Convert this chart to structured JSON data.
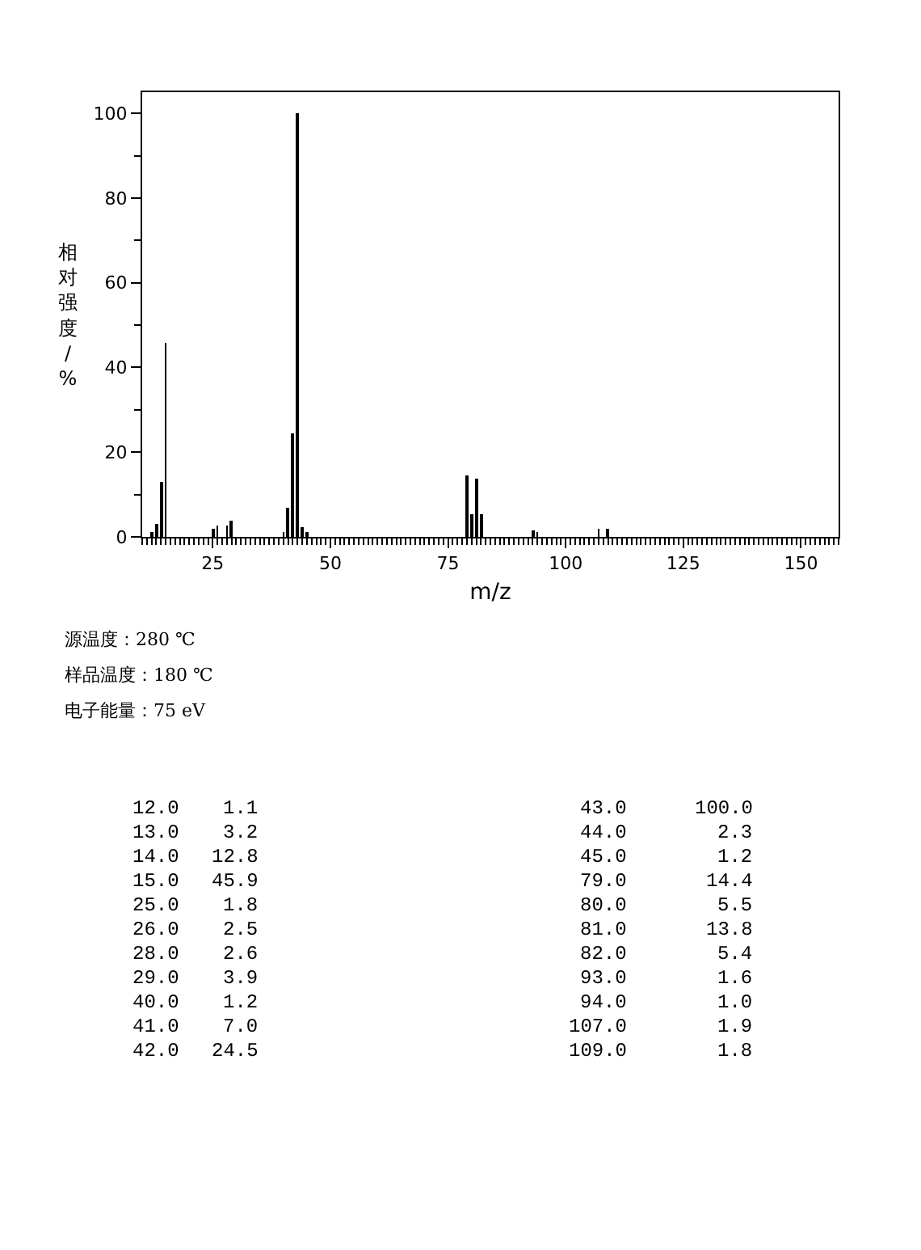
{
  "chart_data": {
    "type": "bar",
    "xlabel": "m/z",
    "ylabel": "相对强度/%",
    "x": [
      12,
      13,
      14,
      15,
      25,
      26,
      28,
      29,
      40,
      41,
      42,
      43,
      44,
      45,
      79,
      80,
      81,
      82,
      93,
      94,
      107,
      109
    ],
    "values": [
      1.1,
      3.2,
      12.8,
      45.9,
      1.8,
      2.5,
      2.6,
      3.9,
      1.2,
      7.0,
      24.5,
      100.0,
      2.3,
      1.2,
      14.4,
      5.5,
      13.8,
      5.4,
      1.6,
      1.0,
      1.9,
      1.8
    ],
    "color": "#000000",
    "xlim": [
      10,
      158
    ],
    "xticks": [
      25,
      50,
      75,
      100,
      125,
      150
    ],
    "ylim": [
      0,
      105
    ],
    "yticks": [
      0,
      20,
      40,
      60,
      80,
      100
    ],
    "annotations": [
      "源温度：280 ℃",
      "样品温度：180 ℃",
      "电子能量：75 eV",
      "12.0",
      "1.1",
      "43.0",
      "100.0",
      "13.0",
      "3.2",
      "44.0",
      "2.3",
      "14.0",
      "12.8",
      "45.0",
      "1.2",
      "15.0",
      "45.9",
      "79.0",
      "14.4",
      "25.0",
      "1.8",
      "80.0",
      "5.5",
      "26.0",
      "2.5",
      "81.0",
      "13.8",
      "28.0",
      "2.6",
      "82.0",
      "5.4",
      "29.0",
      "3.9",
      "93.0",
      "1.6",
      "40.0",
      "1.2",
      "94.0",
      "1.0",
      "41.0",
      "7.0",
      "107.0",
      "1.9",
      "42.0",
      "24.5",
      "109.0",
      "1.8"
    ]
  }
}
